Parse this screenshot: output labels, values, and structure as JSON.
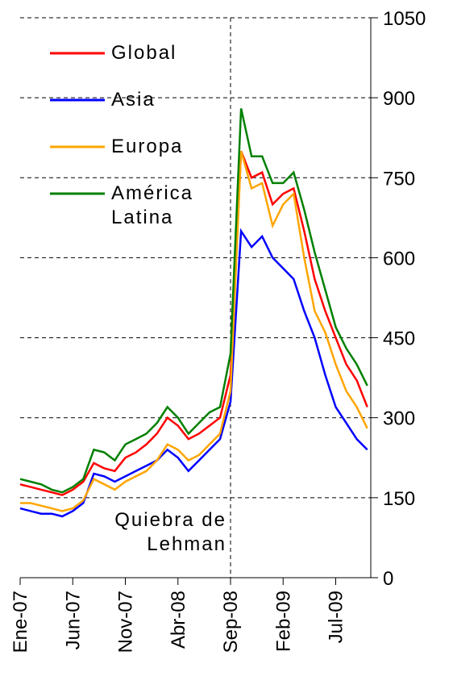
{
  "chart_data": {
    "type": "line",
    "x": [
      "2007-01",
      "2007-02",
      "2007-03",
      "2007-04",
      "2007-05",
      "2007-06",
      "2007-07",
      "2007-08",
      "2007-09",
      "2007-10",
      "2007-11",
      "2007-12",
      "2008-01",
      "2008-02",
      "2008-03",
      "2008-04",
      "2008-05",
      "2008-06",
      "2008-07",
      "2008-08",
      "2008-09",
      "2008-10",
      "2008-11",
      "2008-12",
      "2009-01",
      "2009-02",
      "2009-03",
      "2009-04",
      "2009-05",
      "2009-06",
      "2009-07",
      "2009-08",
      "2009-09",
      "2009-10"
    ],
    "series": [
      {
        "name": "Global",
        "color": "#ff0000",
        "values": [
          175,
          170,
          165,
          160,
          155,
          165,
          180,
          215,
          205,
          200,
          225,
          235,
          250,
          270,
          300,
          285,
          260,
          270,
          285,
          300,
          380,
          800,
          750,
          760,
          700,
          720,
          730,
          650,
          560,
          500,
          450,
          400,
          370,
          320
        ]
      },
      {
        "name": "Asia",
        "color": "#0000ff",
        "values": [
          130,
          125,
          120,
          120,
          115,
          125,
          140,
          195,
          190,
          180,
          190,
          200,
          210,
          220,
          240,
          225,
          200,
          220,
          240,
          260,
          330,
          650,
          620,
          640,
          600,
          580,
          560,
          500,
          450,
          380,
          320,
          290,
          260,
          240
        ]
      },
      {
        "name": "Europa",
        "color": "#ffa500",
        "values": [
          140,
          140,
          135,
          130,
          125,
          130,
          145,
          185,
          175,
          165,
          180,
          190,
          200,
          220,
          250,
          240,
          220,
          230,
          250,
          270,
          350,
          800,
          730,
          740,
          660,
          700,
          720,
          600,
          500,
          460,
          400,
          350,
          320,
          280
        ]
      },
      {
        "name": "América Latina",
        "color": "#008000",
        "values": [
          185,
          180,
          175,
          165,
          160,
          170,
          185,
          240,
          235,
          220,
          250,
          260,
          270,
          290,
          320,
          300,
          270,
          290,
          310,
          320,
          420,
          880,
          790,
          790,
          740,
          740,
          760,
          690,
          610,
          540,
          470,
          430,
          400,
          360
        ]
      }
    ],
    "xticks": [
      {
        "value": "2007-01",
        "label": "Ene-07"
      },
      {
        "value": "2007-06",
        "label": "Jun-07"
      },
      {
        "value": "2007-11",
        "label": "Nov-07"
      },
      {
        "value": "2008-04",
        "label": "Abr-08"
      },
      {
        "value": "2008-09",
        "label": "Sep-08"
      },
      {
        "value": "2009-02",
        "label": "Feb-09"
      },
      {
        "value": "2009-07",
        "label": "Jul-09"
      }
    ],
    "ylim": [
      0,
      1050
    ],
    "yticks": [
      0,
      150,
      300,
      450,
      600,
      750,
      900,
      1050
    ],
    "grid": true,
    "annotation": {
      "text": "Quiebra de Lehman",
      "x": "2008-09"
    }
  }
}
